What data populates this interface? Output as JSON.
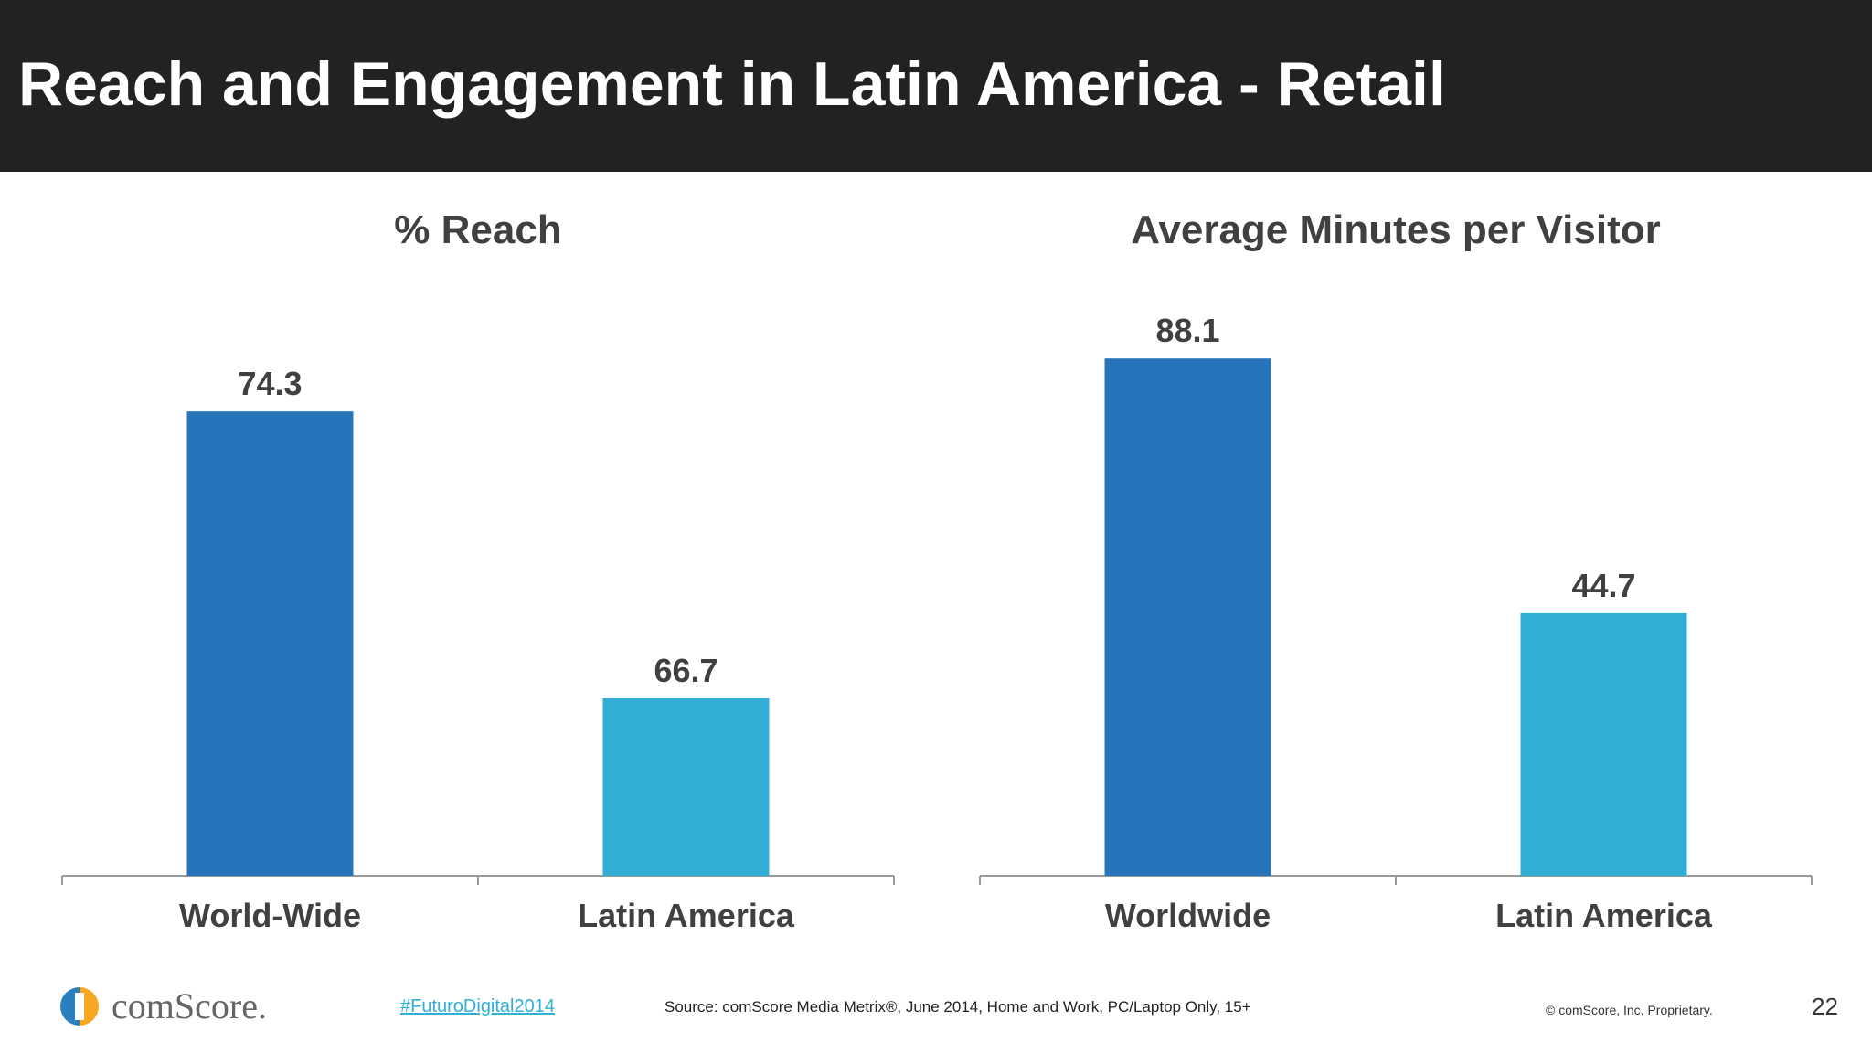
{
  "header": {
    "title": "Reach and Engagement in Latin America - Retail"
  },
  "chart_data": [
    {
      "type": "bar",
      "title": "% Reach",
      "categories": [
        "World-Wide",
        "Latin America"
      ],
      "values": [
        74.3,
        66.7
      ],
      "value_labels": [
        "74.3",
        "66.7"
      ],
      "colors": [
        "#2874ba",
        "#32aed6"
      ],
      "ylim": [
        62,
        76
      ]
    },
    {
      "type": "bar",
      "title": "Average Minutes per Visitor",
      "categories": [
        "Worldwide",
        "Latin America"
      ],
      "values": [
        88.1,
        44.7
      ],
      "value_labels": [
        "88.1",
        "44.7"
      ],
      "colors": [
        "#2874ba",
        "#32aed6"
      ],
      "ylim": [
        0,
        90
      ]
    }
  ],
  "footer": {
    "logo_text": "comScore.",
    "hashtag": "#FuturoDigital2014",
    "source": "Source: comScore Media Metrix®, June 2014, Home and Work, PC/Laptop Only, 15+",
    "copyright": "© comScore, Inc. Proprietary.",
    "page_number": "22"
  },
  "colors": {
    "header_bg": "#222222",
    "bar_primary": "#2874ba",
    "bar_secondary": "#32aed6",
    "hashtag": "#2fb0d6"
  }
}
